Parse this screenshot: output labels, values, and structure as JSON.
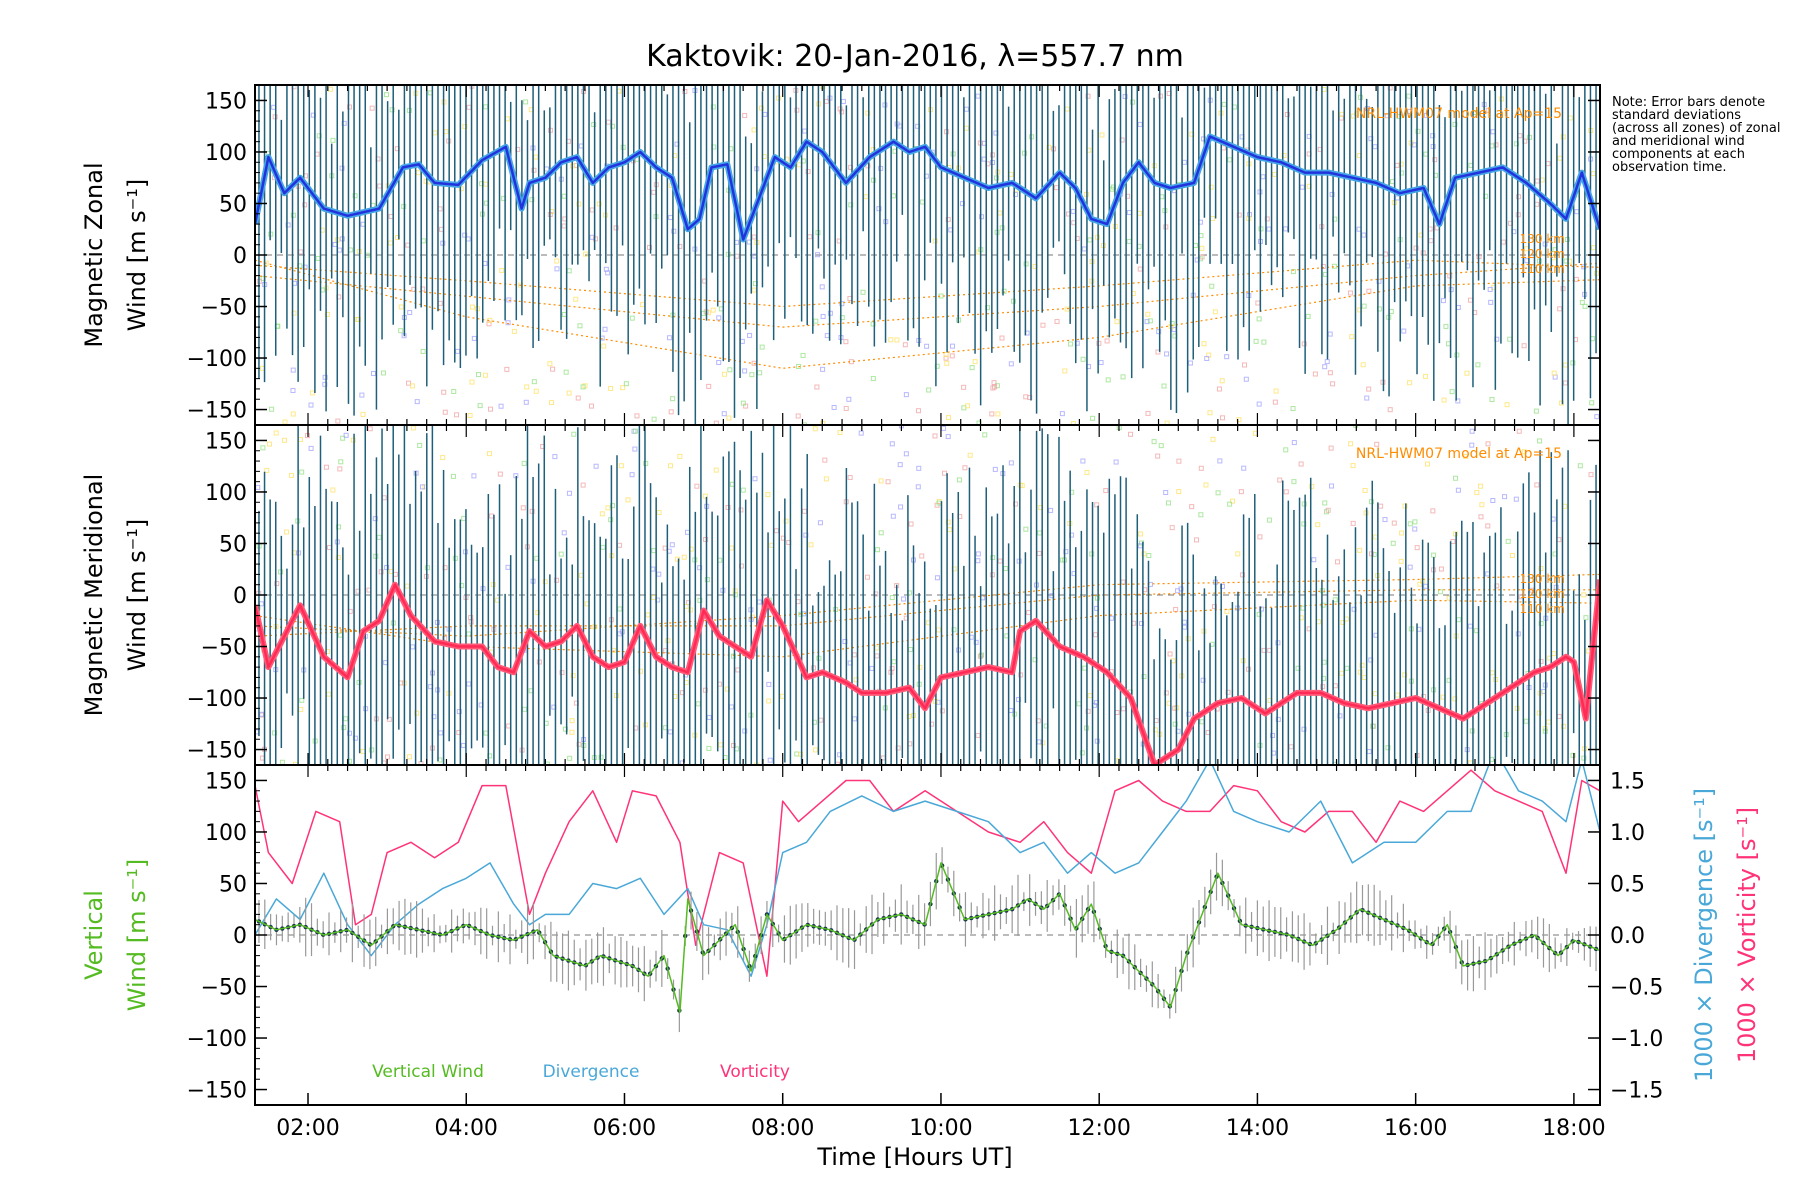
{
  "title": "Kaktovik: 20-Jan-2016, λ=557.7 nm",
  "note": "Note: Error bars denote standard deviations (across all zones) of zonal and meridional wind components at each observation time.",
  "colors": {
    "zonal": "#2233dd",
    "zonal_light": "#44a6e6",
    "meridional": "#ff2a55",
    "meridional_light": "#ff5a78",
    "errorbar": "#1f5f7a",
    "model": "#ff8c00",
    "vertical": "#55bb22",
    "divergence": "#4aa8d8",
    "vorticity": "#ff3377",
    "points": "#1a3550",
    "scatter": [
      "#a0a0ff",
      "#90e080",
      "#ffe060",
      "#f0a0a0"
    ]
  },
  "chart_data": [
    {
      "type": "line",
      "ylabel": [
        "Magnetic Zonal",
        "Wind [m s⁻¹]"
      ],
      "ylim": [
        -165,
        165
      ],
      "yticks": [
        150,
        100,
        50,
        0,
        -50,
        -100,
        -150
      ],
      "xlim": [
        1.33,
        18.33
      ],
      "model_label": "NRL-HWM07 model at Ap=15",
      "model_levels": [
        {
          "name": "130 km",
          "x": [
            1.33,
            4,
            8,
            12,
            16,
            18.33
          ],
          "y": [
            -20,
            -40,
            -70,
            -50,
            -20,
            -8
          ]
        },
        {
          "name": "120 km",
          "x": [
            1.33,
            4,
            8,
            12,
            16,
            18.33
          ],
          "y": [
            -10,
            -25,
            -50,
            -30,
            -5,
            -12
          ]
        },
        {
          "name": "110 km",
          "x": [
            1.33,
            4,
            8,
            12,
            16,
            18.33
          ],
          "y": [
            -5,
            -60,
            -110,
            -80,
            -30,
            -24
          ]
        }
      ],
      "series": [
        {
          "key": "zonal",
          "x": [
            1.33,
            1.5,
            1.7,
            1.9,
            2.2,
            2.5,
            2.9,
            3.2,
            3.4,
            3.6,
            3.9,
            4.2,
            4.5,
            4.7,
            4.8,
            5.0,
            5.2,
            5.4,
            5.6,
            5.8,
            6.0,
            6.2,
            6.4,
            6.6,
            6.8,
            6.95,
            7.1,
            7.3,
            7.5,
            7.7,
            7.9,
            8.1,
            8.3,
            8.5,
            8.8,
            9.1,
            9.4,
            9.6,
            9.8,
            10.0,
            10.3,
            10.6,
            10.9,
            11.2,
            11.5,
            11.7,
            11.9,
            12.1,
            12.3,
            12.5,
            12.7,
            12.9,
            13.2,
            13.4,
            13.7,
            14.0,
            14.3,
            14.6,
            14.9,
            15.2,
            15.5,
            15.8,
            16.1,
            16.3,
            16.5,
            16.8,
            17.1,
            17.4,
            17.7,
            17.9,
            18.1,
            18.33
          ],
          "y": [
            30,
            95,
            60,
            75,
            45,
            38,
            45,
            85,
            88,
            70,
            68,
            92,
            105,
            45,
            70,
            75,
            90,
            95,
            70,
            85,
            90,
            100,
            85,
            75,
            25,
            35,
            85,
            88,
            15,
            55,
            95,
            85,
            110,
            100,
            70,
            95,
            110,
            100,
            105,
            85,
            75,
            65,
            70,
            55,
            80,
            65,
            35,
            30,
            70,
            90,
            70,
            65,
            70,
            115,
            105,
            95,
            90,
            80,
            80,
            75,
            70,
            60,
            65,
            30,
            75,
            80,
            85,
            70,
            50,
            35,
            80,
            25
          ]
        },
        {
          "key": "meridional",
          "x": [
            1.33,
            1.5,
            1.7,
            1.9,
            2.2,
            2.5,
            2.7,
            2.9,
            3.1,
            3.3,
            3.6,
            3.9,
            4.2,
            4.4,
            4.6,
            4.8,
            5.0,
            5.2,
            5.4,
            5.6,
            5.8,
            6.0,
            6.2,
            6.4,
            6.6,
            6.8,
            7.0,
            7.2,
            7.4,
            7.6,
            7.8,
            8.0,
            8.3,
            8.5,
            8.8,
            9.0,
            9.3,
            9.6,
            9.8,
            10.0,
            10.3,
            10.6,
            10.9,
            11.0,
            11.2,
            11.5,
            11.8,
            12.1,
            12.4,
            12.7,
            13.0,
            13.2,
            13.5,
            13.8,
            14.1,
            14.5,
            14.8,
            15.1,
            15.4,
            15.7,
            16.0,
            16.3,
            16.6,
            16.9,
            17.2,
            17.5,
            17.7,
            17.9,
            18.0,
            18.15,
            18.33
          ],
          "y": [
            -10,
            -70,
            -40,
            -10,
            -60,
            -80,
            -35,
            -25,
            10,
            -20,
            -45,
            -50,
            -50,
            -70,
            -75,
            -35,
            -50,
            -45,
            -30,
            -60,
            -70,
            -65,
            -30,
            -60,
            -70,
            -75,
            -15,
            -40,
            -50,
            -60,
            -5,
            -30,
            -80,
            -75,
            -85,
            -95,
            -95,
            -90,
            -110,
            -80,
            -75,
            -70,
            -75,
            -35,
            -25,
            -50,
            -60,
            -75,
            -100,
            -165,
            -150,
            -120,
            -105,
            -100,
            -115,
            -95,
            -95,
            -105,
            -110,
            -105,
            -100,
            -110,
            -120,
            -105,
            -90,
            -75,
            -70,
            -60,
            -65,
            -120,
            15
          ]
        }
      ]
    },
    {
      "type": "line",
      "ylabel": [
        "Magnetic Meridional",
        "Wind [m s⁻¹]"
      ],
      "ylim": [
        -165,
        165
      ],
      "yticks": [
        150,
        100,
        50,
        0,
        -50,
        -100,
        -150
      ],
      "xlim": [
        1.33,
        18.33
      ],
      "model_label": "NRL-HWM07 model at Ap=15",
      "model_levels": [
        {
          "name": "130 km",
          "x": [
            1.33,
            4,
            8,
            12,
            16,
            18.33
          ],
          "y": [
            -30,
            -40,
            -20,
            10,
            15,
            20
          ]
        },
        {
          "name": "120 km",
          "x": [
            1.33,
            4,
            8,
            12,
            16,
            18.33
          ],
          "y": [
            -40,
            -30,
            -30,
            0,
            5,
            5
          ]
        },
        {
          "name": "110 km",
          "x": [
            1.33,
            4,
            8,
            12,
            16,
            18.33
          ],
          "y": [
            -20,
            -50,
            -60,
            -20,
            -5,
            -8
          ]
        }
      ]
    },
    {
      "type": "line",
      "ylabel": [
        "Vertical",
        "Wind [m s⁻¹]"
      ],
      "y2label": [
        "1000 × Divergence [s⁻¹]",
        "1000 × Vorticity [s⁻¹]"
      ],
      "ylim": [
        -165,
        165
      ],
      "yticks": [
        150,
        100,
        50,
        0,
        -50,
        -100,
        -150
      ],
      "y2lim": [
        -1.65,
        1.65
      ],
      "y2ticks": [
        "1.5",
        "1.0",
        "0.5",
        "0.0",
        "−0.5",
        "−1.0",
        "−1.5"
      ],
      "xlim": [
        1.33,
        18.33
      ],
      "xlabel": "Time [Hours UT]",
      "xticks": [
        "02:00",
        "04:00",
        "06:00",
        "08:00",
        "10:00",
        "12:00",
        "14:00",
        "16:00",
        "18:00"
      ],
      "legend": [
        "Vertical Wind",
        "Divergence",
        "Vorticity"
      ],
      "series": [
        {
          "key": "vertical",
          "x": [
            1.33,
            1.6,
            1.9,
            2.2,
            2.5,
            2.8,
            3.1,
            3.4,
            3.7,
            4.0,
            4.3,
            4.6,
            4.9,
            5.1,
            5.3,
            5.5,
            5.7,
            5.9,
            6.1,
            6.3,
            6.5,
            6.7,
            6.8,
            7.0,
            7.2,
            7.4,
            7.6,
            7.8,
            8.0,
            8.3,
            8.6,
            8.9,
            9.2,
            9.5,
            9.8,
            10.0,
            10.3,
            10.6,
            10.9,
            11.1,
            11.3,
            11.5,
            11.7,
            11.9,
            12.1,
            12.3,
            12.5,
            12.7,
            12.9,
            13.1,
            13.3,
            13.5,
            13.8,
            14.1,
            14.4,
            14.7,
            15.0,
            15.3,
            15.6,
            15.9,
            16.2,
            16.4,
            16.6,
            16.9,
            17.2,
            17.5,
            17.8,
            18.0,
            18.33
          ],
          "y": [
            15,
            5,
            10,
            0,
            5,
            -10,
            10,
            5,
            0,
            10,
            0,
            -5,
            5,
            -20,
            -25,
            -30,
            -20,
            -25,
            -30,
            -40,
            -20,
            -75,
            35,
            -20,
            -5,
            10,
            -35,
            20,
            -5,
            10,
            5,
            -5,
            15,
            20,
            10,
            70,
            15,
            20,
            25,
            35,
            25,
            40,
            5,
            30,
            -15,
            -20,
            -35,
            -50,
            -70,
            -20,
            20,
            60,
            10,
            5,
            0,
            -10,
            5,
            25,
            15,
            5,
            -10,
            10,
            -30,
            -25,
            -10,
            0,
            -20,
            -5,
            -15
          ]
        },
        {
          "key": "divergence",
          "x": [
            1.33,
            1.6,
            1.9,
            2.2,
            2.5,
            2.8,
            3.1,
            3.4,
            3.7,
            4.0,
            4.3,
            4.6,
            4.8,
            5.0,
            5.3,
            5.6,
            5.9,
            6.2,
            6.5,
            6.8,
            7.0,
            7.3,
            7.6,
            7.8,
            8.0,
            8.3,
            8.6,
            9.0,
            9.4,
            9.8,
            10.2,
            10.6,
            11.0,
            11.3,
            11.6,
            11.9,
            12.2,
            12.5,
            12.8,
            13.1,
            13.4,
            13.7,
            14.0,
            14.4,
            14.8,
            15.2,
            15.6,
            16.0,
            16.4,
            16.7,
            17.0,
            17.3,
            17.6,
            17.9,
            18.1,
            18.33
          ],
          "y": [
            0.0,
            0.35,
            0.15,
            0.6,
            0.1,
            -0.2,
            0.1,
            0.3,
            0.45,
            0.55,
            0.7,
            0.3,
            0.1,
            0.2,
            0.2,
            0.5,
            0.45,
            0.55,
            0.2,
            0.45,
            0.1,
            0.05,
            -0.4,
            0.1,
            0.8,
            0.9,
            1.2,
            1.35,
            1.2,
            1.3,
            1.2,
            1.1,
            0.8,
            0.9,
            0.6,
            0.8,
            0.6,
            0.7,
            1.0,
            1.3,
            1.7,
            1.2,
            1.1,
            1.0,
            1.3,
            0.7,
            0.9,
            0.9,
            1.2,
            1.2,
            1.8,
            1.4,
            1.3,
            1.1,
            1.7,
            1.0
          ]
        },
        {
          "key": "vorticity",
          "x": [
            1.33,
            1.5,
            1.8,
            2.1,
            2.4,
            2.6,
            2.8,
            3.0,
            3.3,
            3.6,
            3.9,
            4.2,
            4.5,
            4.8,
            5.0,
            5.3,
            5.6,
            5.9,
            6.1,
            6.4,
            6.7,
            6.9,
            7.2,
            7.5,
            7.8,
            8.0,
            8.2,
            8.5,
            8.8,
            9.1,
            9.4,
            9.8,
            10.2,
            10.6,
            11.0,
            11.3,
            11.6,
            11.9,
            12.2,
            12.5,
            12.8,
            13.1,
            13.4,
            13.7,
            14.0,
            14.3,
            14.6,
            14.9,
            15.2,
            15.5,
            15.8,
            16.1,
            16.4,
            16.7,
            17.0,
            17.3,
            17.6,
            17.9,
            18.1,
            18.33
          ],
          "y": [
            1.45,
            0.8,
            0.5,
            1.2,
            1.1,
            0.1,
            0.2,
            0.8,
            0.9,
            0.75,
            0.9,
            1.45,
            1.45,
            0.2,
            0.6,
            1.1,
            1.4,
            0.9,
            1.4,
            1.35,
            0.9,
            -0.1,
            0.8,
            0.7,
            -0.4,
            1.3,
            1.1,
            1.3,
            1.5,
            1.5,
            1.2,
            1.4,
            1.2,
            1.0,
            0.9,
            1.1,
            0.8,
            0.6,
            1.4,
            1.5,
            1.3,
            1.2,
            1.2,
            1.45,
            1.4,
            1.1,
            1.0,
            1.2,
            1.2,
            0.9,
            1.3,
            1.2,
            1.4,
            1.6,
            1.4,
            1.3,
            1.2,
            0.6,
            1.5,
            1.4
          ]
        }
      ]
    }
  ]
}
